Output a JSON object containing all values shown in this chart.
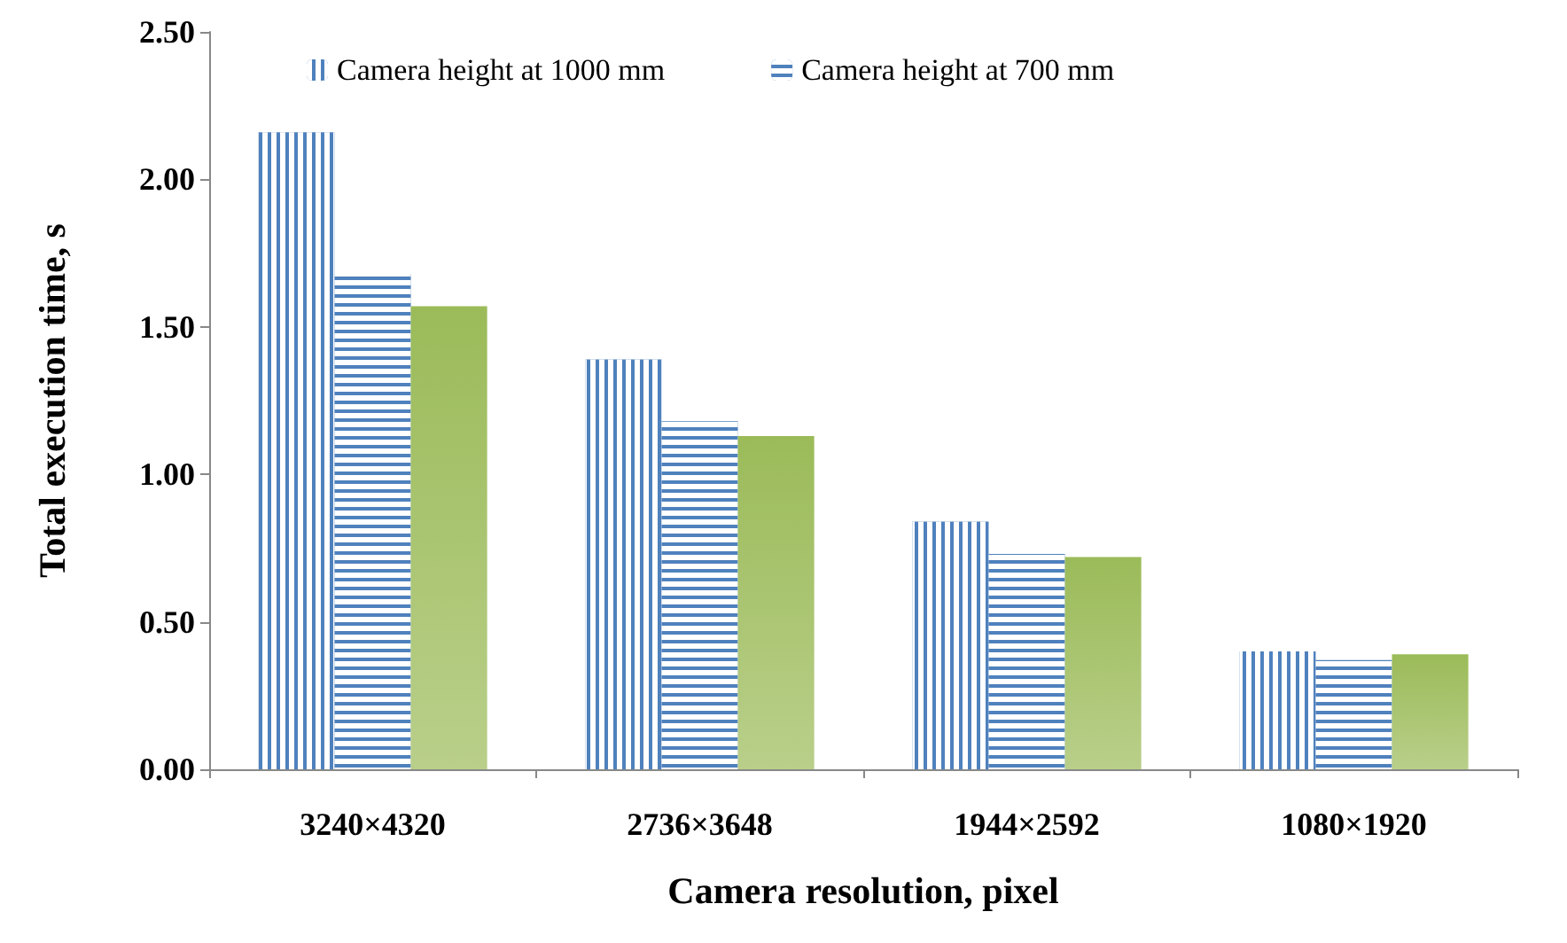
{
  "chart_data": {
    "type": "bar",
    "xlabel": "Camera resolution, pixel",
    "ylabel": "Total execution time, s",
    "categories": [
      "3240×4320",
      "2736×3648",
      "1944×2592",
      "1080×1920"
    ],
    "series": [
      {
        "name": "Camera height at 1000 mm",
        "color": "#4f81bd",
        "values": [
          2.16,
          1.39,
          0.84,
          0.4
        ]
      },
      {
        "name": "Camera height at 700 mm",
        "color": "#4f81bd",
        "values": [
          1.68,
          1.18,
          0.73,
          0.37
        ]
      },
      {
        "color": "#9bbb59",
        "values": [
          1.57,
          1.13,
          0.72,
          0.39
        ]
      }
    ],
    "ylim": [
      0,
      2.5
    ],
    "yticks": [
      {
        "value": 0,
        "label": "0.00"
      },
      {
        "value": 0.5,
        "label": "0.50"
      },
      {
        "value": 1,
        "label": "1.00"
      },
      {
        "value": 1.5,
        "label": "1.50"
      },
      {
        "value": 2,
        "label": "2.00"
      },
      {
        "value": 2.5,
        "label": "2.50"
      }
    ],
    "grid": false,
    "legend": "top"
  }
}
